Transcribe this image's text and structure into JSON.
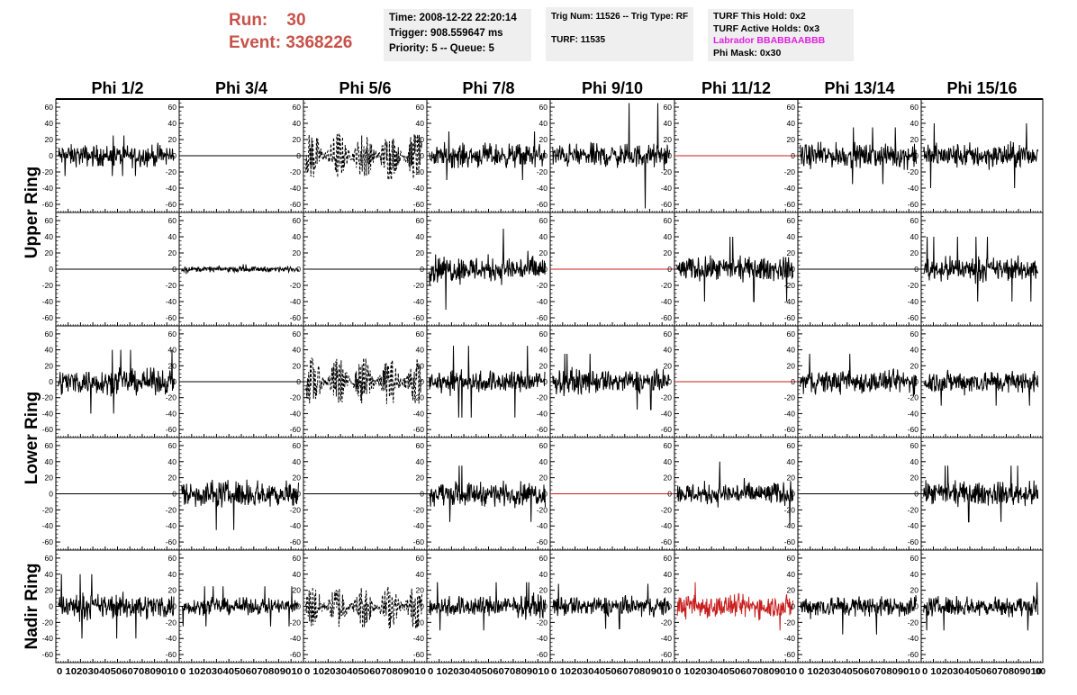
{
  "header": {
    "run_label": "Run:",
    "run_value": "30",
    "event_label": "Event:",
    "event_value": "3368226",
    "info1": [
      "Time: 2008-12-22 22:20:14",
      "Trigger: 908.559647 ms",
      "Priority: 5 -- Queue: 5"
    ],
    "info2": [
      "Trig Num: 11526 -- Trig Type: RF",
      "TURF: 11535"
    ],
    "info3": [
      "TURF This Hold: 0x2",
      "TURF Active Holds: 0x3",
      "Labrador BBABBAABBB",
      "Phi Mask: 0x30"
    ]
  },
  "colors": {
    "run_text": "#c8524a",
    "labrador_text": "#e020e0",
    "trace_normal": "#000000",
    "trace_masked": "#c81e1e",
    "info_box_bg": "#efefef"
  },
  "chart_data": {
    "type": "line",
    "columns": [
      "Phi 1/2",
      "Phi 3/4",
      "Phi 5/6",
      "Phi 7/8",
      "Phi 9/10",
      "Phi 11/12",
      "Phi 13/14",
      "Phi 15/16"
    ],
    "ring_labels": [
      {
        "text": "Upper Ring",
        "rows": [
          0,
          1
        ]
      },
      {
        "text": "Lower Ring",
        "rows": [
          2,
          3
        ]
      },
      {
        "text": "Nadir Ring",
        "rows": [
          4
        ]
      }
    ],
    "ylim": [
      -70,
      70
    ],
    "yticks": [
      -60,
      -40,
      -20,
      0,
      20,
      40,
      60
    ],
    "xlim": [
      0,
      100
    ],
    "xticks": [
      0,
      10,
      20,
      30,
      40,
      50,
      60,
      70,
      80,
      90,
      100
    ],
    "xtick_labels_bottom": "0 10203040506070809010",
    "panels": [
      [
        {
          "style": "noise",
          "amp": 12,
          "peak": 25,
          "color": "normal"
        },
        {
          "style": "flat",
          "color": "normal"
        },
        {
          "style": "dashed",
          "amp": 22,
          "peak": 35,
          "color": "normal"
        },
        {
          "style": "noise",
          "amp": 13,
          "peak": 30,
          "color": "normal"
        },
        {
          "style": "noise",
          "amp": 13,
          "peak": 65,
          "color": "normal"
        },
        {
          "style": "flat",
          "color": "masked"
        },
        {
          "style": "noise",
          "amp": 13,
          "peak": 35,
          "color": "normal"
        },
        {
          "style": "noise",
          "amp": 14,
          "peak": 40,
          "color": "normal"
        }
      ],
      [
        {
          "style": "flat",
          "color": "normal"
        },
        {
          "style": "noise",
          "amp": 3,
          "peak": 6,
          "color": "normal"
        },
        {
          "style": "flat",
          "color": "normal"
        },
        {
          "style": "noise",
          "amp": 15,
          "peak": 50,
          "color": "normal"
        },
        {
          "style": "flat",
          "color": "masked"
        },
        {
          "style": "noise",
          "amp": 13,
          "peak": 40,
          "color": "normal"
        },
        {
          "style": "flat",
          "color": "normal"
        },
        {
          "style": "noise",
          "amp": 13,
          "peak": 40,
          "color": "normal"
        }
      ],
      [
        {
          "style": "noise",
          "amp": 14,
          "peak": 40,
          "color": "normal"
        },
        {
          "style": "flat",
          "color": "normal"
        },
        {
          "style": "dashed",
          "amp": 22,
          "peak": 40,
          "color": "normal"
        },
        {
          "style": "noise",
          "amp": 13,
          "peak": 45,
          "color": "normal"
        },
        {
          "style": "noise",
          "amp": 13,
          "peak": 35,
          "color": "normal"
        },
        {
          "style": "flat",
          "color": "masked"
        },
        {
          "style": "noise",
          "amp": 13,
          "peak": 35,
          "color": "normal"
        },
        {
          "style": "noise",
          "amp": 13,
          "peak": 30,
          "color": "normal"
        }
      ],
      [
        {
          "style": "flat",
          "color": "normal"
        },
        {
          "style": "noise",
          "amp": 15,
          "peak": 45,
          "color": "normal"
        },
        {
          "style": "flat",
          "color": "normal"
        },
        {
          "style": "noise",
          "amp": 13,
          "peak": 35,
          "color": "normal"
        },
        {
          "style": "flat",
          "color": "masked"
        },
        {
          "style": "noise",
          "amp": 13,
          "peak": 40,
          "color": "normal"
        },
        {
          "style": "flat",
          "color": "normal"
        },
        {
          "style": "noise",
          "amp": 13,
          "peak": 35,
          "color": "normal"
        }
      ],
      [
        {
          "style": "noise",
          "amp": 14,
          "peak": 40,
          "color": "normal"
        },
        {
          "style": "noise",
          "amp": 9,
          "peak": 25,
          "color": "normal"
        },
        {
          "style": "dashed",
          "amp": 20,
          "peak": 45,
          "color": "normal"
        },
        {
          "style": "noise",
          "amp": 12,
          "peak": 30,
          "color": "normal"
        },
        {
          "style": "noise",
          "amp": 11,
          "peak": 28,
          "color": "normal"
        },
        {
          "style": "noise",
          "amp": 13,
          "peak": 30,
          "color": "masked"
        },
        {
          "style": "noise",
          "amp": 12,
          "peak": 35,
          "color": "normal"
        },
        {
          "style": "noise",
          "amp": 11,
          "peak": 30,
          "color": "normal"
        }
      ]
    ]
  }
}
